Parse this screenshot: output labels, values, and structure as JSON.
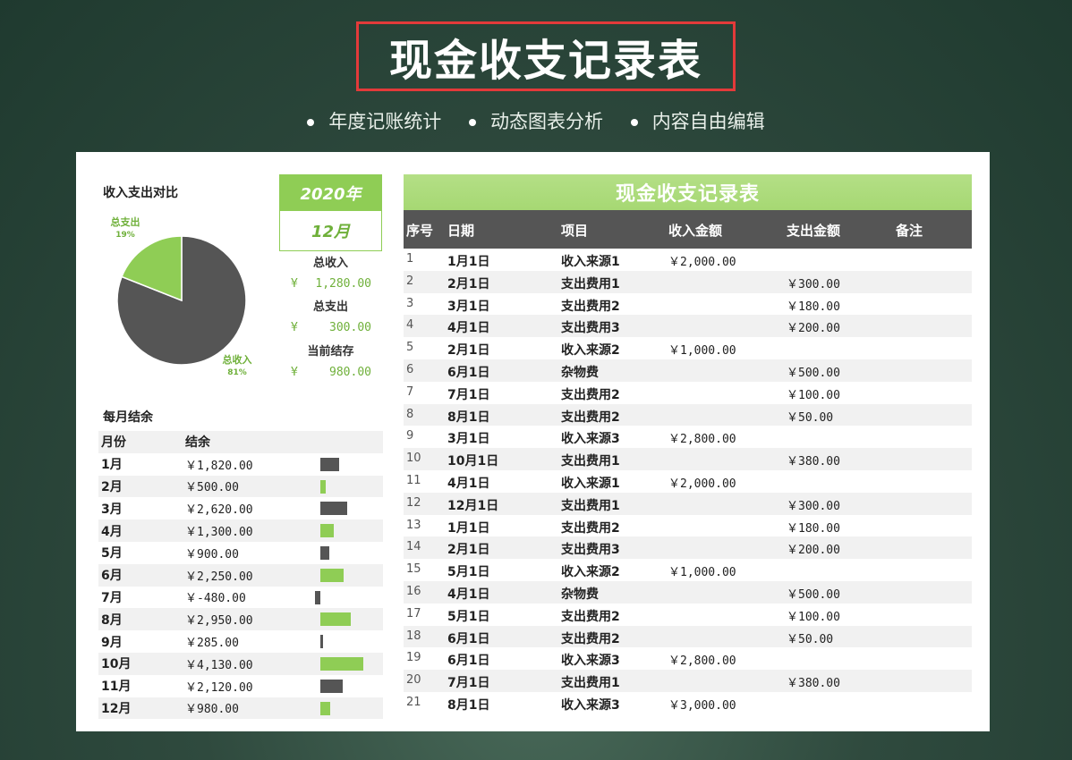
{
  "hero": {
    "title": "现金收支记录表",
    "features": [
      "年度记账统计",
      "动态图表分析",
      "内容自由编辑"
    ]
  },
  "colors": {
    "accent": "#8fcd55",
    "dark": "#555555",
    "bg": "#2f4a3e",
    "highlight": "#e33a3a"
  },
  "left": {
    "compare_title": "收入支出对比",
    "pie": {
      "expense_label": "总支出",
      "expense_pct": "19%",
      "income_label": "总收入",
      "income_pct": "81%",
      "income_share": 0.81,
      "expense_share": 0.19
    },
    "year": "2020年",
    "month": "12月",
    "stats": {
      "income_label": "总收入",
      "income_currency": "¥",
      "income_value": "1,280.00",
      "expense_label": "总支出",
      "expense_currency": "¥",
      "expense_value": "300.00",
      "balance_label": "当前结存",
      "balance_currency": "¥",
      "balance_value": "980.00"
    },
    "monthly_title": "每月结余",
    "monthly_headers": {
      "month": "月份",
      "balance": "结余"
    },
    "monthly_rows": [
      {
        "month": "1月",
        "balance": "￥1,820.00",
        "value": 1820,
        "color": "#555555"
      },
      {
        "month": "2月",
        "balance": "￥500.00",
        "value": 500,
        "color": "#8fcd55"
      },
      {
        "month": "3月",
        "balance": "￥2,620.00",
        "value": 2620,
        "color": "#555555"
      },
      {
        "month": "4月",
        "balance": "￥1,300.00",
        "value": 1300,
        "color": "#8fcd55"
      },
      {
        "month": "5月",
        "balance": "￥900.00",
        "value": 900,
        "color": "#555555"
      },
      {
        "month": "6月",
        "balance": "￥2,250.00",
        "value": 2250,
        "color": "#8fcd55"
      },
      {
        "month": "7月",
        "balance": "￥-480.00",
        "value": -480,
        "color": "#555555"
      },
      {
        "month": "8月",
        "balance": "￥2,950.00",
        "value": 2950,
        "color": "#8fcd55"
      },
      {
        "month": "9月",
        "balance": "￥285.00",
        "value": 285,
        "color": "#555555"
      },
      {
        "month": "10月",
        "balance": "￥4,130.00",
        "value": 4130,
        "color": "#8fcd55"
      },
      {
        "month": "11月",
        "balance": "￥2,120.00",
        "value": 2120,
        "color": "#555555"
      },
      {
        "month": "12月",
        "balance": "￥980.00",
        "value": 980,
        "color": "#8fcd55"
      }
    ]
  },
  "table": {
    "title": "现金收支记录表",
    "headers": [
      "序号",
      "日期",
      "项目",
      "收入金额",
      "支出金额",
      "备注"
    ],
    "rows": [
      [
        "1",
        "1月1日",
        "收入来源1",
        "￥2,000.00",
        "",
        ""
      ],
      [
        "2",
        "2月1日",
        "支出费用1",
        "",
        "￥300.00",
        ""
      ],
      [
        "3",
        "3月1日",
        "支出费用2",
        "",
        "￥180.00",
        ""
      ],
      [
        "4",
        "4月1日",
        "支出费用3",
        "",
        "￥200.00",
        ""
      ],
      [
        "5",
        "2月1日",
        "收入来源2",
        "￥1,000.00",
        "",
        ""
      ],
      [
        "6",
        "6月1日",
        "杂物费",
        "",
        "￥500.00",
        ""
      ],
      [
        "7",
        "7月1日",
        "支出费用2",
        "",
        "￥100.00",
        ""
      ],
      [
        "8",
        "8月1日",
        "支出费用2",
        "",
        "￥50.00",
        ""
      ],
      [
        "9",
        "3月1日",
        "收入来源3",
        "￥2,800.00",
        "",
        ""
      ],
      [
        "10",
        "10月1日",
        "支出费用1",
        "",
        "￥380.00",
        ""
      ],
      [
        "11",
        "4月1日",
        "收入来源1",
        "￥2,000.00",
        "",
        ""
      ],
      [
        "12",
        "12月1日",
        "支出费用1",
        "",
        "￥300.00",
        ""
      ],
      [
        "13",
        "1月1日",
        "支出费用2",
        "",
        "￥180.00",
        ""
      ],
      [
        "14",
        "2月1日",
        "支出费用3",
        "",
        "￥200.00",
        ""
      ],
      [
        "15",
        "5月1日",
        "收入来源2",
        "￥1,000.00",
        "",
        ""
      ],
      [
        "16",
        "4月1日",
        "杂物费",
        "",
        "￥500.00",
        ""
      ],
      [
        "17",
        "5月1日",
        "支出费用2",
        "",
        "￥100.00",
        ""
      ],
      [
        "18",
        "6月1日",
        "支出费用2",
        "",
        "￥50.00",
        ""
      ],
      [
        "19",
        "6月1日",
        "收入来源3",
        "￥2,800.00",
        "",
        ""
      ],
      [
        "20",
        "7月1日",
        "支出费用1",
        "",
        "￥380.00",
        ""
      ],
      [
        "21",
        "8月1日",
        "收入来源3",
        "￥3,000.00",
        "",
        ""
      ]
    ]
  }
}
